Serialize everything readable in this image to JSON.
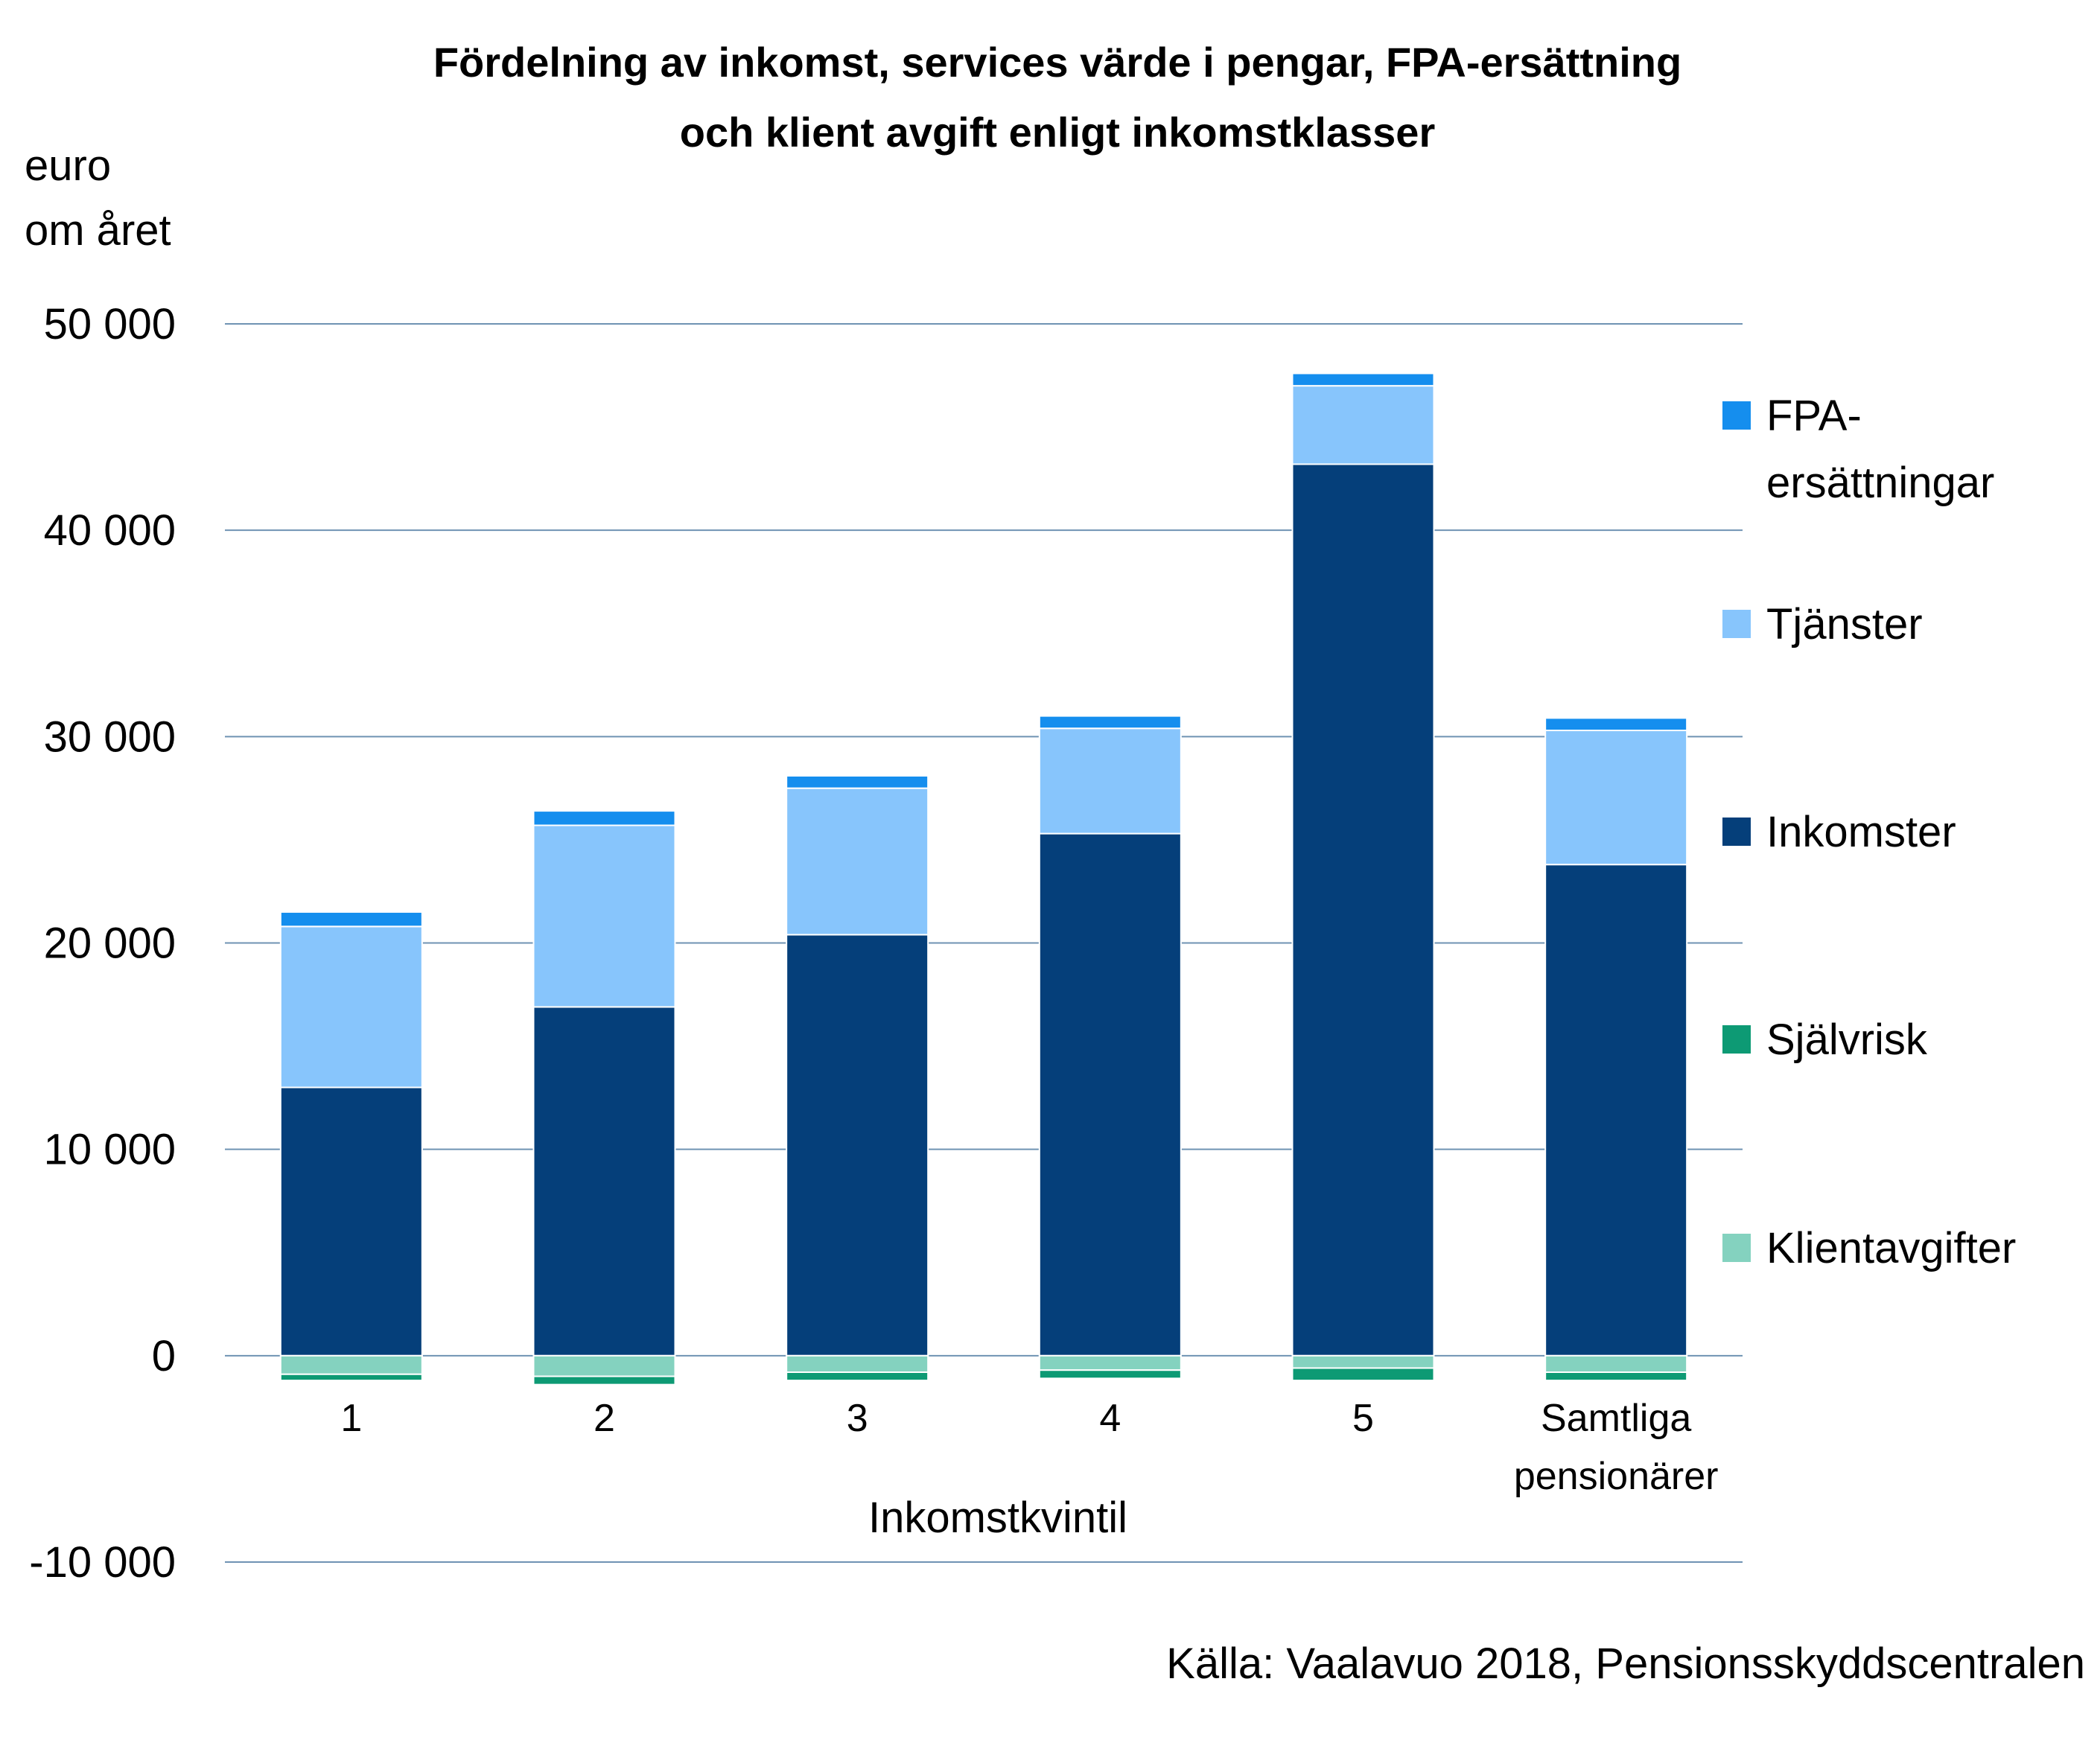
{
  "chart_data": {
    "type": "bar",
    "stacked": true,
    "title": "Fördelning av inkomst, services värde i pengar, FPA-ersättning och klient avgift enligt inkomstklasser",
    "title_lines": [
      "Fördelning av inkomst, services värde i pengar, FPA-ersättning",
      "och klient avgift enligt inkomstklasser"
    ],
    "ylabel_lines": [
      "euro",
      "om året"
    ],
    "xlabel": "Inkomstkvintil",
    "ylim": [
      -10000,
      50000
    ],
    "yticks": [
      50000,
      40000,
      30000,
      20000,
      10000,
      0,
      -10000
    ],
    "ytick_labels": [
      "50 000",
      "40 000",
      "30 000",
      "20 000",
      "10 000",
      "0",
      "-10 000"
    ],
    "grid": true,
    "categories": [
      "1",
      "2",
      "3",
      "4",
      "5",
      "Samtliga pensionärer"
    ],
    "category_label_lines": [
      [
        "1"
      ],
      [
        "2"
      ],
      [
        "3"
      ],
      [
        "4"
      ],
      [
        "5"
      ],
      [
        "Samtliga",
        "pensionärer"
      ]
    ],
    "series": [
      {
        "name": "Inkomster",
        "color": "#053f7a",
        "values": [
          13000,
          16900,
          20400,
          25300,
          43200,
          23800
        ]
      },
      {
        "name": "Tjänster",
        "color": "#87c5fc",
        "values": [
          7800,
          8800,
          7100,
          5100,
          3800,
          6500
        ]
      },
      {
        "name": "FPA-ersättningar",
        "color": "#158eee",
        "values": [
          700,
          700,
          600,
          600,
          600,
          600
        ]
      },
      {
        "name": "Klientavgifter",
        "color": "#84d2bf",
        "values": [
          -900,
          -1000,
          -800,
          -700,
          -600,
          -800
        ]
      },
      {
        "name": "Självrisk",
        "color": "#0d9a74",
        "values": [
          -300,
          -400,
          -400,
          -400,
          -600,
          -400
        ]
      }
    ],
    "legend": {
      "placement": "right",
      "items": [
        {
          "series": "FPA-ersättningar",
          "lines": [
            "FPA-",
            "ersättningar"
          ],
          "color": "#158eee"
        },
        {
          "series": "Tjänster",
          "lines": [
            "Tjänster"
          ],
          "color": "#87c5fc"
        },
        {
          "series": "Inkomster",
          "lines": [
            "Inkomster"
          ],
          "color": "#053f7a"
        },
        {
          "series": "Självrisk",
          "lines": [
            "Självrisk"
          ],
          "color": "#0d9a74"
        },
        {
          "series": "Klientavgifter",
          "lines": [
            "Klientavgifter"
          ],
          "color": "#84d2bf"
        }
      ]
    },
    "source": "Källa: Vaalavuo 2018, Pensionsskyddscentralen"
  }
}
